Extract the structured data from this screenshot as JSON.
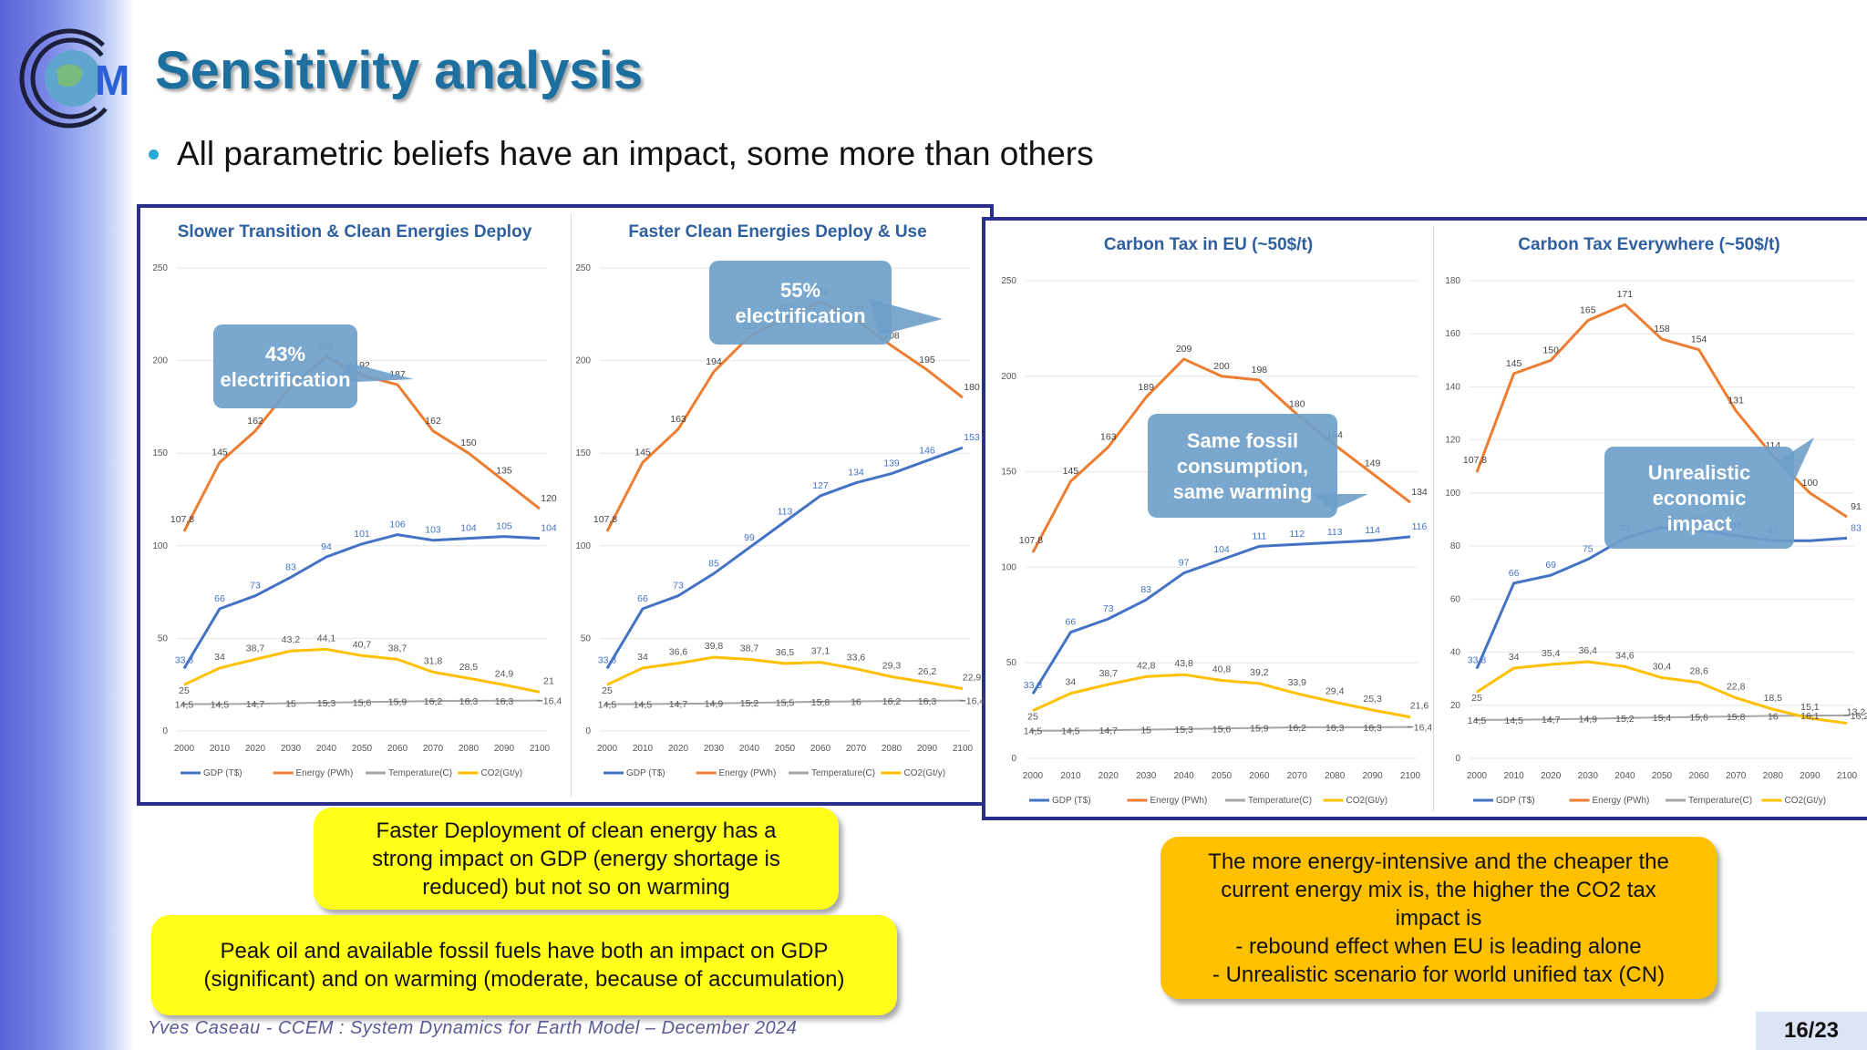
{
  "slide": {
    "title": "Sensitivity analysis",
    "bullet": "All parametric beliefs have an impact, some more than others",
    "footer": "Yves Caseau  - CCEM : System Dynamics for Earth Model – December 2024",
    "page": "16/23",
    "logo_text": "M"
  },
  "legend": [
    "GDP (T$)",
    "Energy (PWh)",
    "Temperature(C)",
    "CO2(Gt/y)"
  ],
  "colors": {
    "gdp": "#4472c4",
    "energy": "#ed7d31",
    "temperature": "#a5a5a5",
    "co2": "#ffc000",
    "callout": "#6e9fc9",
    "title_blue": "#1c6f9e",
    "frame": "#2a2f8c"
  },
  "chart_data": [
    {
      "type": "line",
      "title": "Slower Transition & Clean Energies Deploy",
      "x": [
        "2000",
        "2010",
        "2020",
        "2030",
        "2040",
        "2050",
        "2060",
        "2070",
        "2080",
        "2090",
        "2100"
      ],
      "ylim": [
        0,
        250
      ],
      "yticks": [
        "0",
        "50",
        "100",
        "150",
        "200",
        "250"
      ],
      "callout": "43%\nelectrification",
      "series": [
        {
          "name": "GDP (T$)",
          "values": [
            33.8,
            66,
            73,
            83,
            94,
            101,
            106,
            103,
            104,
            105,
            104
          ],
          "labels": [
            "33,8",
            "66",
            "73",
            "83",
            "94",
            "101",
            "106",
            "103",
            "104",
            "105",
            "104"
          ]
        },
        {
          "name": "Energy (PWh)",
          "values": [
            107.8,
            145,
            162,
            186,
            202,
            192,
            187,
            162,
            150,
            135,
            120
          ],
          "labels": [
            "107,8",
            "145",
            "162",
            "186",
            "202",
            "192",
            "187",
            "162",
            "150",
            "135",
            "120"
          ]
        },
        {
          "name": "Temperature(C)",
          "values": [
            14.5,
            14.5,
            14.7,
            15,
            15.3,
            15.6,
            15.9,
            16.2,
            16.3,
            16.3,
            16.4
          ],
          "labels": [
            "14,5",
            "14,5",
            "14,7",
            "15",
            "15,3",
            "15,6",
            "15,9",
            "16,2",
            "16,3",
            "16,3",
            "16,4"
          ]
        },
        {
          "name": "CO2(Gt/y)",
          "values": [
            25,
            34,
            38.7,
            43.2,
            44.1,
            40.7,
            38.7,
            31.8,
            28.5,
            24.9,
            21
          ],
          "labels": [
            "25",
            "34",
            "38,7",
            "43,2",
            "44,1",
            "40,7",
            "38,7",
            "31,8",
            "28,5",
            "24,9",
            "21"
          ]
        }
      ]
    },
    {
      "type": "line",
      "title": "Faster Clean Energies Deploy & Use",
      "x": [
        "2000",
        "2010",
        "2020",
        "2030",
        "2040",
        "2050",
        "2060",
        "2070",
        "2080",
        "2090",
        "2100"
      ],
      "ylim": [
        0,
        250
      ],
      "yticks": [
        "0",
        "50",
        "100",
        "150",
        "200",
        "250"
      ],
      "callout": "55%\nelectrification",
      "series": [
        {
          "name": "GDP (T$)",
          "values": [
            33.8,
            66,
            73,
            85,
            99,
            113,
            127,
            134,
            139,
            146,
            153
          ],
          "labels": [
            "33,8",
            "66",
            "73",
            "85",
            "99",
            "113",
            "127",
            "134",
            "139",
            "146",
            "153"
          ]
        },
        {
          "name": "Energy (PWh)",
          "values": [
            107.8,
            145,
            163,
            194,
            213,
            223,
            232,
            222,
            208,
            195,
            180
          ],
          "labels": [
            "107,8",
            "145",
            "163",
            "194",
            "213",
            "223",
            "232",
            "222",
            "208",
            "195",
            "180"
          ]
        },
        {
          "name": "Temperature(C)",
          "values": [
            14.5,
            14.5,
            14.7,
            14.9,
            15.2,
            15.5,
            15.8,
            16,
            16.2,
            16.3,
            16.4
          ],
          "labels": [
            "14,5",
            "14,5",
            "14,7",
            "14,9",
            "15,2",
            "15,5",
            "15,8",
            "16",
            "16,2",
            "16,3",
            "16,4"
          ]
        },
        {
          "name": "CO2(Gt/y)",
          "values": [
            25,
            34,
            36.6,
            39.8,
            38.7,
            36.5,
            37.1,
            33.6,
            29.3,
            26.2,
            22.9
          ],
          "labels": [
            "25",
            "34",
            "36,6",
            "39,8",
            "38,7",
            "36,5",
            "37,1",
            "33,6",
            "29,3",
            "26,2",
            "22,9"
          ]
        }
      ]
    },
    {
      "type": "line",
      "title": "Carbon Tax in EU (~50$/t)",
      "x": [
        "2000",
        "2010",
        "2020",
        "2030",
        "2040",
        "2050",
        "2060",
        "2070",
        "2080",
        "2090",
        "2100"
      ],
      "ylim": [
        0,
        250
      ],
      "yticks": [
        "0",
        "50",
        "100",
        "150",
        "200",
        "250"
      ],
      "callout": "Same fossil\nconsumption,\nsame warming",
      "series": [
        {
          "name": "GDP (T$)",
          "values": [
            33.8,
            66,
            73,
            83,
            97,
            104,
            111,
            112,
            113,
            114,
            116
          ],
          "labels": [
            "33,8",
            "66",
            "73",
            "83",
            "97",
            "104",
            "111",
            "112",
            "113",
            "114",
            "116"
          ]
        },
        {
          "name": "Energy (PWh)",
          "values": [
            107.8,
            145,
            163,
            189,
            209,
            200,
            198,
            180,
            164,
            149,
            134
          ],
          "labels": [
            "107,8",
            "145",
            "163",
            "189",
            "209",
            "200",
            "198",
            "180",
            "164",
            "149",
            "134"
          ]
        },
        {
          "name": "Temperature(C)",
          "values": [
            14.5,
            14.5,
            14.7,
            15,
            15.3,
            15.6,
            15.9,
            16.2,
            16.3,
            16.3,
            16.4
          ],
          "labels": [
            "14,5",
            "14,5",
            "14,7",
            "15",
            "15,3",
            "15,6",
            "15,9",
            "16,2",
            "16,3",
            "16,3",
            "16,4"
          ]
        },
        {
          "name": "CO2(Gt/y)",
          "values": [
            25,
            34,
            38.7,
            42.8,
            43.8,
            40.8,
            39.2,
            33.9,
            29.4,
            25.3,
            21.6
          ],
          "labels": [
            "25",
            "34",
            "38,7",
            "42,8",
            "43,8",
            "40,8",
            "39,2",
            "33,9",
            "29,4",
            "25,3",
            "21,6"
          ]
        }
      ]
    },
    {
      "type": "line",
      "title": "Carbon Tax Everywhere (~50$/t)",
      "x": [
        "2000",
        "2010",
        "2020",
        "2030",
        "2040",
        "2050",
        "2060",
        "2070",
        "2080",
        "2090",
        "2100"
      ],
      "ylim": [
        0,
        180
      ],
      "yticks": [
        "0",
        "20",
        "40",
        "60",
        "80",
        "100",
        "120",
        "140",
        "160",
        "180"
      ],
      "callout": "Unrealistic\neconomic\nimpact",
      "series": [
        {
          "name": "GDP (T$)",
          "values": [
            33.8,
            66,
            69,
            75,
            83,
            87,
            86,
            84,
            82,
            82,
            83
          ],
          "labels": [
            "33,8",
            "66",
            "69",
            "75",
            "83",
            "",
            "86",
            "84",
            "82",
            "",
            "83"
          ]
        },
        {
          "name": "Energy (PWh)",
          "values": [
            107.8,
            145,
            150,
            165,
            171,
            158,
            154,
            131,
            114,
            100,
            91
          ],
          "labels": [
            "107,8",
            "145",
            "150",
            "165",
            "171",
            "158",
            "154",
            "131",
            "114",
            "100",
            "91"
          ]
        },
        {
          "name": "Temperature(C)",
          "values": [
            14.5,
            14.5,
            14.7,
            14.9,
            15.2,
            15.4,
            15.6,
            15.8,
            16,
            16.1,
            16.2
          ],
          "labels": [
            "14,5",
            "14,5",
            "14,7",
            "14,9",
            "15,2",
            "15,4",
            "15,6",
            "15,8",
            "16",
            "16,1",
            "16,2"
          ]
        },
        {
          "name": "CO2(Gt/y)",
          "values": [
            25,
            34,
            35.4,
            36.4,
            34.6,
            30.4,
            28.6,
            22.8,
            18.5,
            15.1,
            13.2
          ],
          "labels": [
            "25",
            "34",
            "35,4",
            "36,4",
            "34,6",
            "30,4",
            "28,6",
            "22,8",
            "18,5",
            "15,1",
            "13,2"
          ]
        }
      ]
    }
  ],
  "notes": {
    "faster": "Faster Deployment of clean energy has a\nstrong impact on GDP (energy shortage is\nreduced) but not so on warming",
    "peak": "Peak oil and available fossil fuels have both an impact on GDP\n(significant) and on warming (moderate, because of accumulation)",
    "tax": "The more energy-intensive and the cheaper the\ncurrent energy mix is, the higher the CO2 tax\nimpact is\n- rebound effect when EU is leading alone\n- Unrealistic scenario for world unified tax (CN)"
  }
}
